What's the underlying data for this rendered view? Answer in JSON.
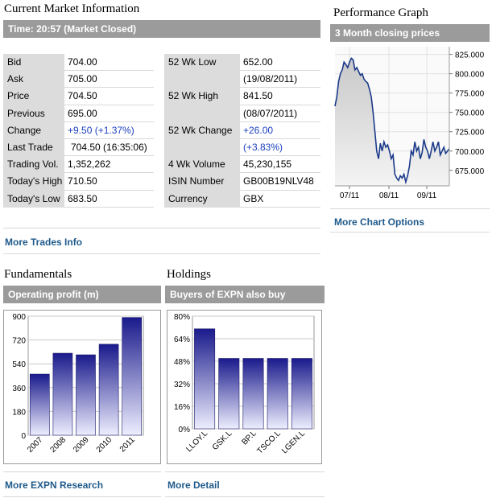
{
  "market": {
    "title": "Current Market Information",
    "status": "Time: 20:57 (Market Closed)",
    "left_rows": [
      {
        "label": "Bid",
        "value": "704.00"
      },
      {
        "label": "Ask",
        "value": "705.00"
      },
      {
        "label": "Price",
        "value": "704.50"
      },
      {
        "label": "Previous",
        "value": "695.00"
      },
      {
        "label": "Change",
        "value": "+9.50 (+1.37%)"
      },
      {
        "label": "Last Trade",
        "value": "704.50 (16:35:06)"
      },
      {
        "label": "Trading Vol.",
        "value": "1,352,262"
      },
      {
        "label": "Today's High",
        "value": "710.50"
      },
      {
        "label": "Today's Low",
        "value": "683.50"
      }
    ],
    "right_rows": [
      {
        "label": "52 Wk Low",
        "value": "652.00",
        "sub": "(19/08/2011)"
      },
      {
        "label": "52 Wk High",
        "value": "841.50",
        "sub": "(08/07/2011)"
      },
      {
        "label": "52 Wk Change",
        "value": "+26.00",
        "sub": "(+3.83%)"
      },
      {
        "label": "4 Wk Volume",
        "value": "45,230,155"
      },
      {
        "label": "ISIN Number",
        "value": "GB00B19NLV48"
      },
      {
        "label": "Currency",
        "value": "GBX"
      }
    ],
    "more_trades": "More Trades Info"
  },
  "performance": {
    "title": "Performance Graph",
    "subtitle": "3 Month closing prices",
    "more_chart": "More Chart Options"
  },
  "fundamentals": {
    "title": "Fundamentals",
    "subtitle": "Operating profit (m)",
    "more": "More EXPN Research"
  },
  "holdings": {
    "title": "Holdings",
    "subtitle": "Buyers of EXPN also buy",
    "more": "More Detail"
  },
  "colors": {
    "bar_top": "#1a1a8c",
    "bar_bottom": "#eeeeff",
    "header_bar": "#9b9b9b",
    "link": "#1f5a8b",
    "positive": "#1a3fbf"
  },
  "chart_data": [
    {
      "type": "line",
      "x_ticks": [
        "07/11",
        "08/11",
        "09/11"
      ],
      "y_ticks": [
        825,
        800,
        775,
        750,
        725,
        700,
        675
      ],
      "ylim": [
        655,
        835
      ],
      "x": [
        0,
        1,
        2,
        3,
        4,
        5,
        6,
        7,
        8,
        9,
        10,
        11,
        12,
        13,
        14,
        15,
        16,
        17,
        18,
        19,
        20,
        21,
        22,
        23,
        24,
        25,
        26,
        27,
        28,
        29,
        30,
        31,
        32,
        33,
        34,
        35,
        36,
        37,
        38,
        39,
        40,
        41,
        42,
        43,
        44,
        45,
        46,
        47,
        48,
        49,
        50,
        51,
        52,
        53,
        54,
        55,
        56,
        57,
        58,
        59,
        60,
        61,
        62,
        63
      ],
      "values": [
        758,
        770,
        790,
        800,
        805,
        815,
        812,
        808,
        815,
        820,
        818,
        805,
        808,
        803,
        798,
        800,
        793,
        790,
        788,
        780,
        770,
        750,
        725,
        700,
        690,
        710,
        700,
        712,
        705,
        708,
        700,
        690,
        695,
        670,
        665,
        662,
        668,
        665,
        670,
        660,
        668,
        680,
        700,
        695,
        712,
        700,
        705,
        690,
        698,
        715,
        705,
        700,
        690,
        700,
        712,
        700,
        705,
        712,
        695,
        700,
        705,
        697,
        700,
        703
      ],
      "title": "3 Month closing prices"
    },
    {
      "type": "bar",
      "title": "Operating profit (m)",
      "categories": [
        "2007",
        "2008",
        "2009",
        "2010",
        "2011"
      ],
      "values": [
        462,
        620,
        608,
        688,
        890
      ],
      "y_ticks": [
        0,
        180,
        360,
        540,
        720,
        900
      ],
      "ylim": [
        0,
        900
      ]
    },
    {
      "type": "bar",
      "title": "Buyers of EXPN also buy",
      "categories": [
        "LLOY.L",
        "GSK.L",
        "BP.L",
        "TSCO.L",
        "LGEN.L"
      ],
      "values": [
        71,
        50,
        50,
        50,
        50
      ],
      "y_ticks": [
        "0%",
        "16%",
        "32%",
        "48%",
        "64%",
        "80%"
      ],
      "ylim": [
        0,
        80
      ]
    }
  ]
}
